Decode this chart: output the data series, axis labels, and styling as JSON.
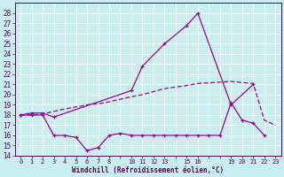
{
  "xlabel": "Windchill (Refroidissement éolien,°C)",
  "background_color": "#c8eef0",
  "grid_color": "#ffffff",
  "line_color": "#990099",
  "ylim": [
    14,
    29
  ],
  "xlim": [
    -0.5,
    23.5
  ],
  "line1_x": [
    0,
    1,
    2,
    3,
    10,
    11,
    13,
    15,
    16,
    19,
    21
  ],
  "line1_y": [
    18.0,
    18.2,
    18.2,
    17.8,
    20.4,
    22.8,
    25.0,
    26.8,
    28.0,
    19.0,
    21.0
  ],
  "line2_x": [
    0,
    1,
    2,
    3,
    4,
    5,
    6,
    7,
    8,
    10,
    11,
    12,
    13,
    15,
    16,
    19,
    21,
    22,
    23
  ],
  "line2_y": [
    18.0,
    18.0,
    18.1,
    18.35,
    18.6,
    18.8,
    19.0,
    19.1,
    19.3,
    19.8,
    20.0,
    20.3,
    20.6,
    20.9,
    21.1,
    21.3,
    21.1,
    17.5,
    17.0
  ],
  "line3_x": [
    0,
    1,
    2,
    3,
    4,
    5,
    6,
    7,
    8,
    9,
    10,
    11,
    12,
    13,
    14,
    15,
    16,
    17,
    18,
    19,
    20,
    21,
    22
  ],
  "line3_y": [
    18.0,
    18.0,
    18.0,
    16.0,
    16.0,
    15.8,
    14.5,
    14.8,
    16.0,
    16.2,
    16.0,
    16.0,
    16.0,
    16.0,
    16.0,
    16.0,
    16.0,
    16.0,
    16.0,
    19.2,
    17.5,
    17.2,
    16.0
  ],
  "shown_xticks": [
    0,
    1,
    2,
    3,
    4,
    5,
    6,
    7,
    8,
    10,
    11,
    12,
    13,
    15,
    16,
    19,
    20,
    21,
    22,
    23
  ],
  "yticks": [
    14,
    15,
    16,
    17,
    18,
    19,
    20,
    21,
    22,
    23,
    24,
    25,
    26,
    27,
    28
  ]
}
